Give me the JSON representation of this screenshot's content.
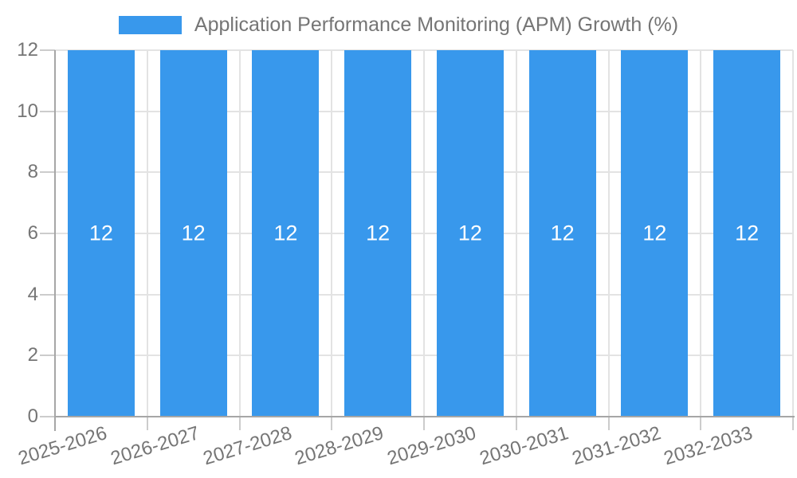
{
  "chart_data": {
    "type": "bar",
    "title": "Application Performance Monitoring (APM) Growth (%)",
    "categories": [
      "2025-2026",
      "2026-2027",
      "2027-2028",
      "2028-2029",
      "2029-2030",
      "2030-2031",
      "2031-2032",
      "2032-2033"
    ],
    "values": [
      12,
      12,
      12,
      12,
      12,
      12,
      12,
      12
    ],
    "bar_labels": [
      "12",
      "12",
      "12",
      "12",
      "12",
      "12",
      "12",
      "12"
    ],
    "xlabel": "",
    "ylabel": "",
    "ylim": [
      0,
      12
    ],
    "yticks": [
      0,
      2,
      4,
      6,
      8,
      10,
      12
    ],
    "grid": true,
    "legend_position": "top",
    "colors": {
      "bar": "#3898ec",
      "bar_label": "#ffffff",
      "grid": "#e3e3e3",
      "tick": "#cccccc",
      "axis": "#a6a6a6",
      "text": "#757575",
      "background": "#ffffff"
    }
  }
}
